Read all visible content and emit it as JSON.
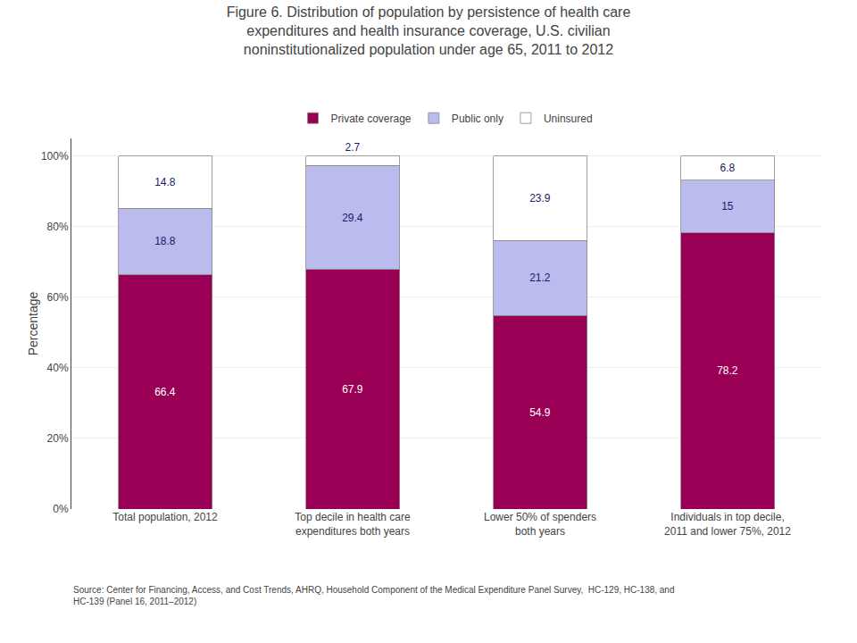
{
  "chart_data": {
    "type": "bar",
    "title": "Figure 6. Distribution of population by persistence of health care\nexpenditures and health insurance coverage, U.S. civilian\nnoninstitutionalized population under age 65, 2011 to 2012",
    "categories": [
      "Total population, 2012",
      "Top decile in health care\nexpenditures both years",
      "Lower 50% of spenders\nboth years",
      "Individuals in top decile,\n2011 and lower 75%, 2012"
    ],
    "series": [
      {
        "name": "Private coverage",
        "color": "#990055",
        "values": [
          66.4,
          67.9,
          54.9,
          78.2
        ]
      },
      {
        "name": "Public only",
        "color": "#BBBBEE",
        "values": [
          18.8,
          29.4,
          21.2,
          15.0
        ]
      },
      {
        "name": "Uninsured",
        "color": "#FFFFFF",
        "values": [
          14.8,
          2.7,
          23.9,
          6.8
        ]
      }
    ],
    "stacked": true,
    "data_labels": true,
    "ylabel": "Percentage",
    "ylim": [
      0,
      105
    ],
    "yticks": [
      {
        "value": 0,
        "label": "0%"
      },
      {
        "value": 20,
        "label": "20%"
      },
      {
        "value": 40,
        "label": "40%"
      },
      {
        "value": 60,
        "label": "60%"
      },
      {
        "value": 80,
        "label": "80%"
      },
      {
        "value": 100,
        "label": "100%"
      }
    ],
    "grid": true,
    "legend": "top",
    "annotations": [
      "Source: Center for Financing, Access, and Cost Trends, AHRQ, Household Component of the Medical Expenditure Panel Survey,  HC-129, HC-138, and\nHC-139 (Panel 16, 2011–2012)"
    ]
  }
}
